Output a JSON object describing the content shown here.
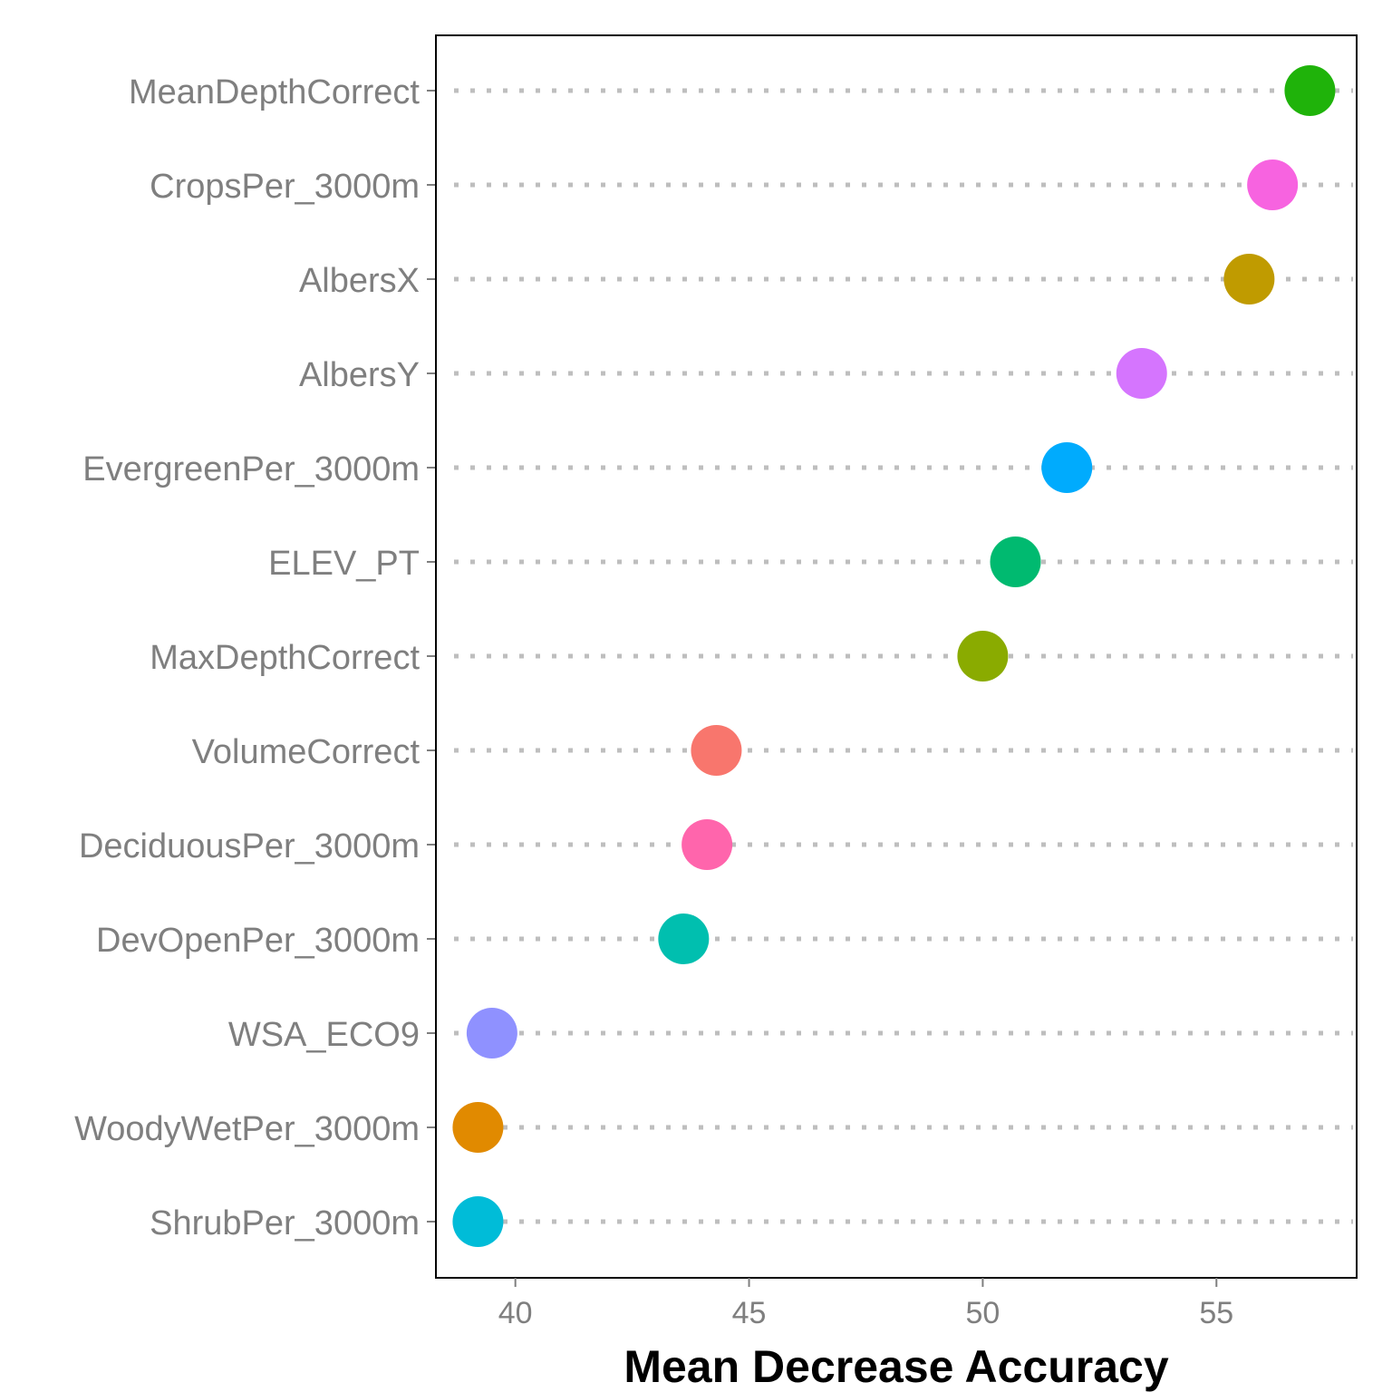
{
  "chart_data": {
    "type": "scatter",
    "title": "",
    "xlabel": "Mean Decrease Accuracy",
    "ylabel": "",
    "xlim": [
      38.3,
      58.0
    ],
    "xticks": [
      40,
      45,
      50,
      55
    ],
    "grid": false,
    "legend": "none",
    "points": [
      {
        "label": "MeanDepthCorrect",
        "value": 57.0,
        "color": "#1fb30a"
      },
      {
        "label": "CropsPer_3000m",
        "value": 56.2,
        "color": "#f763e0"
      },
      {
        "label": "AlbersX",
        "value": 55.7,
        "color": "#c09b00"
      },
      {
        "label": "AlbersY",
        "value": 53.4,
        "color": "#d575fe"
      },
      {
        "label": "EvergreenPer_3000m",
        "value": 51.8,
        "color": "#00abfd"
      },
      {
        "label": "ELEV_PT",
        "value": 50.7,
        "color": "#00ba70"
      },
      {
        "label": "MaxDepthCorrect",
        "value": 50.0,
        "color": "#8aab00"
      },
      {
        "label": "VolumeCorrect",
        "value": 44.3,
        "color": "#f8766d"
      },
      {
        "label": "DeciduousPer_3000m",
        "value": 44.1,
        "color": "#ff65ac"
      },
      {
        "label": "DevOpenPer_3000m",
        "value": 43.6,
        "color": "#00bfaf"
      },
      {
        "label": "WSA_ECO9",
        "value": 39.5,
        "color": "#8f91ff"
      },
      {
        "label": "WoodyWetPer_3000m",
        "value": 39.2,
        "color": "#e18a00"
      },
      {
        "label": "ShrubPer_3000m",
        "value": 39.2,
        "color": "#00bcd8"
      }
    ]
  }
}
